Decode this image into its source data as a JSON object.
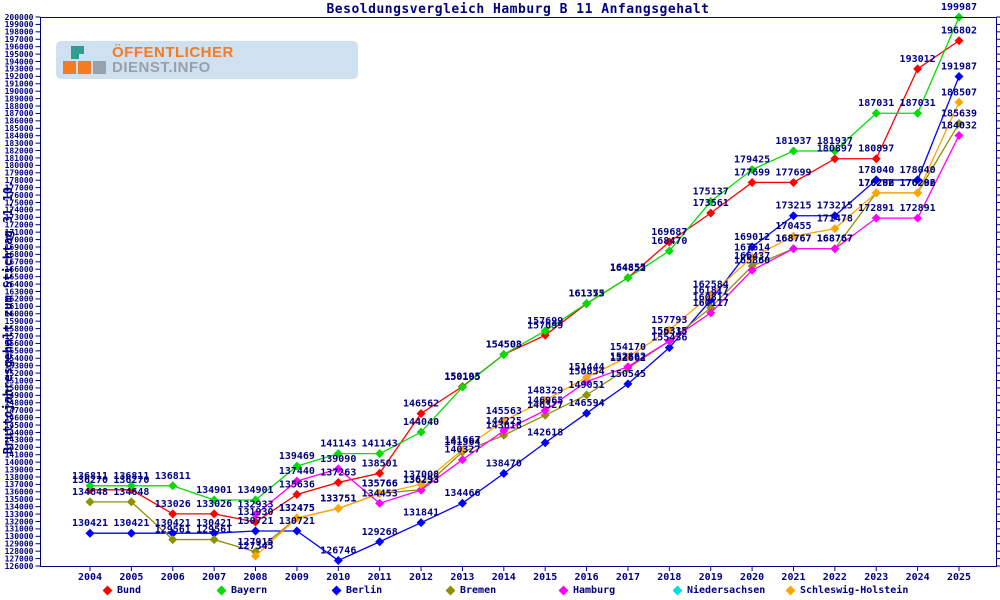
{
  "title": "Besoldungsvergleich Hamburg B 11 Anfangsgehalt",
  "logo": {
    "line1": "ÖFFENTLICHER",
    "line2": "DIENST.INFO",
    "colors": {
      "orange": "#f47b20",
      "gray": "#97a1ac",
      "teal": "#2f9e8f",
      "background": "#cfe1f0"
    }
  },
  "y_axis": {
    "label": "Bruttojahresgehalt zum Stichtag 31.10.",
    "min": 126000,
    "max": 200000,
    "step": 1000
  },
  "axis_color": "#000080",
  "chart_data": {
    "type": "line",
    "title": "Besoldungsvergleich Hamburg B 11 Anfangsgehalt",
    "xlabel": "",
    "ylabel": "Bruttojahresgehalt zum Stichtag 31.10.",
    "ylim": [
      126000,
      200000
    ],
    "ytick_step": 1000,
    "grid": false,
    "legend_position": "bottom",
    "point_labels": true,
    "x": [
      2004,
      2005,
      2006,
      2007,
      2008,
      2009,
      2010,
      2011,
      2012,
      2013,
      2014,
      2015,
      2016,
      2017,
      2018,
      2019,
      2020,
      2021,
      2022,
      2023,
      2024,
      2025
    ],
    "series": [
      {
        "name": "Bund",
        "color": "#ff0000",
        "values": [
          136270,
          136270,
          133026,
          133026,
          131930,
          135636,
          137263,
          138501,
          146562,
          150195,
          154503,
          157099,
          161353,
          164852,
          169687,
          173561,
          177699,
          177699,
          180897,
          180897,
          193012,
          196802
        ]
      },
      {
        "name": "Bayern",
        "color": "#00dd00",
        "values": [
          136811,
          136811,
          136811,
          134901,
          134901,
          139469,
          141143,
          141143,
          144040,
          150105,
          154508,
          157699,
          161375,
          164855,
          168470,
          175137,
          179425,
          181937,
          181937,
          187031,
          187031,
          199987
        ]
      },
      {
        "name": "Berlin",
        "color": "#0000ff",
        "values": [
          130421,
          130421,
          130421,
          130421,
          130721,
          130721,
          126746,
          129268,
          131841,
          134466,
          138470,
          142618,
          146594,
          150545,
          155436,
          161817,
          169012,
          173215,
          173215,
          178040,
          178040,
          191987
        ]
      },
      {
        "name": "Bremen",
        "color": "#909000",
        "values": [
          134648,
          134648,
          129561,
          129561,
          127915,
          132475,
          133751,
          135766,
          136293,
          141364,
          143618,
          146327,
          149051,
          152662,
          156315,
          160817,
          166437,
          168767,
          168767,
          176292,
          176292,
          185639
        ]
      },
      {
        "name": "Hamburg",
        "color": "#ff00ff",
        "values": [
          null,
          null,
          null,
          null,
          132933,
          137440,
          139090,
          134453,
          136233,
          140327,
          144225,
          146965,
          150854,
          152862,
          156335,
          160117,
          165860,
          168767,
          168767,
          172891,
          172891,
          184032
        ]
      },
      {
        "name": "Niedersachsen",
        "color": "#00dddd",
        "values": [
          null,
          null,
          null,
          null,
          null,
          null,
          null,
          null,
          null,
          null,
          null,
          null,
          null,
          null,
          null,
          null,
          null,
          null,
          null,
          null,
          null,
          null
        ]
      },
      {
        "name": "Schleswig-Holstein",
        "color": "#ffa500",
        "values": [
          null,
          null,
          null,
          null,
          127345,
          132475,
          133751,
          135766,
          137008,
          141667,
          145563,
          148329,
          151444,
          154170,
          157793,
          162584,
          167614,
          170455,
          171478,
          176286,
          176286,
          188507
        ]
      }
    ]
  },
  "legend_x_positions": [
    104,
    218,
    333,
    447,
    560,
    674,
    787
  ]
}
